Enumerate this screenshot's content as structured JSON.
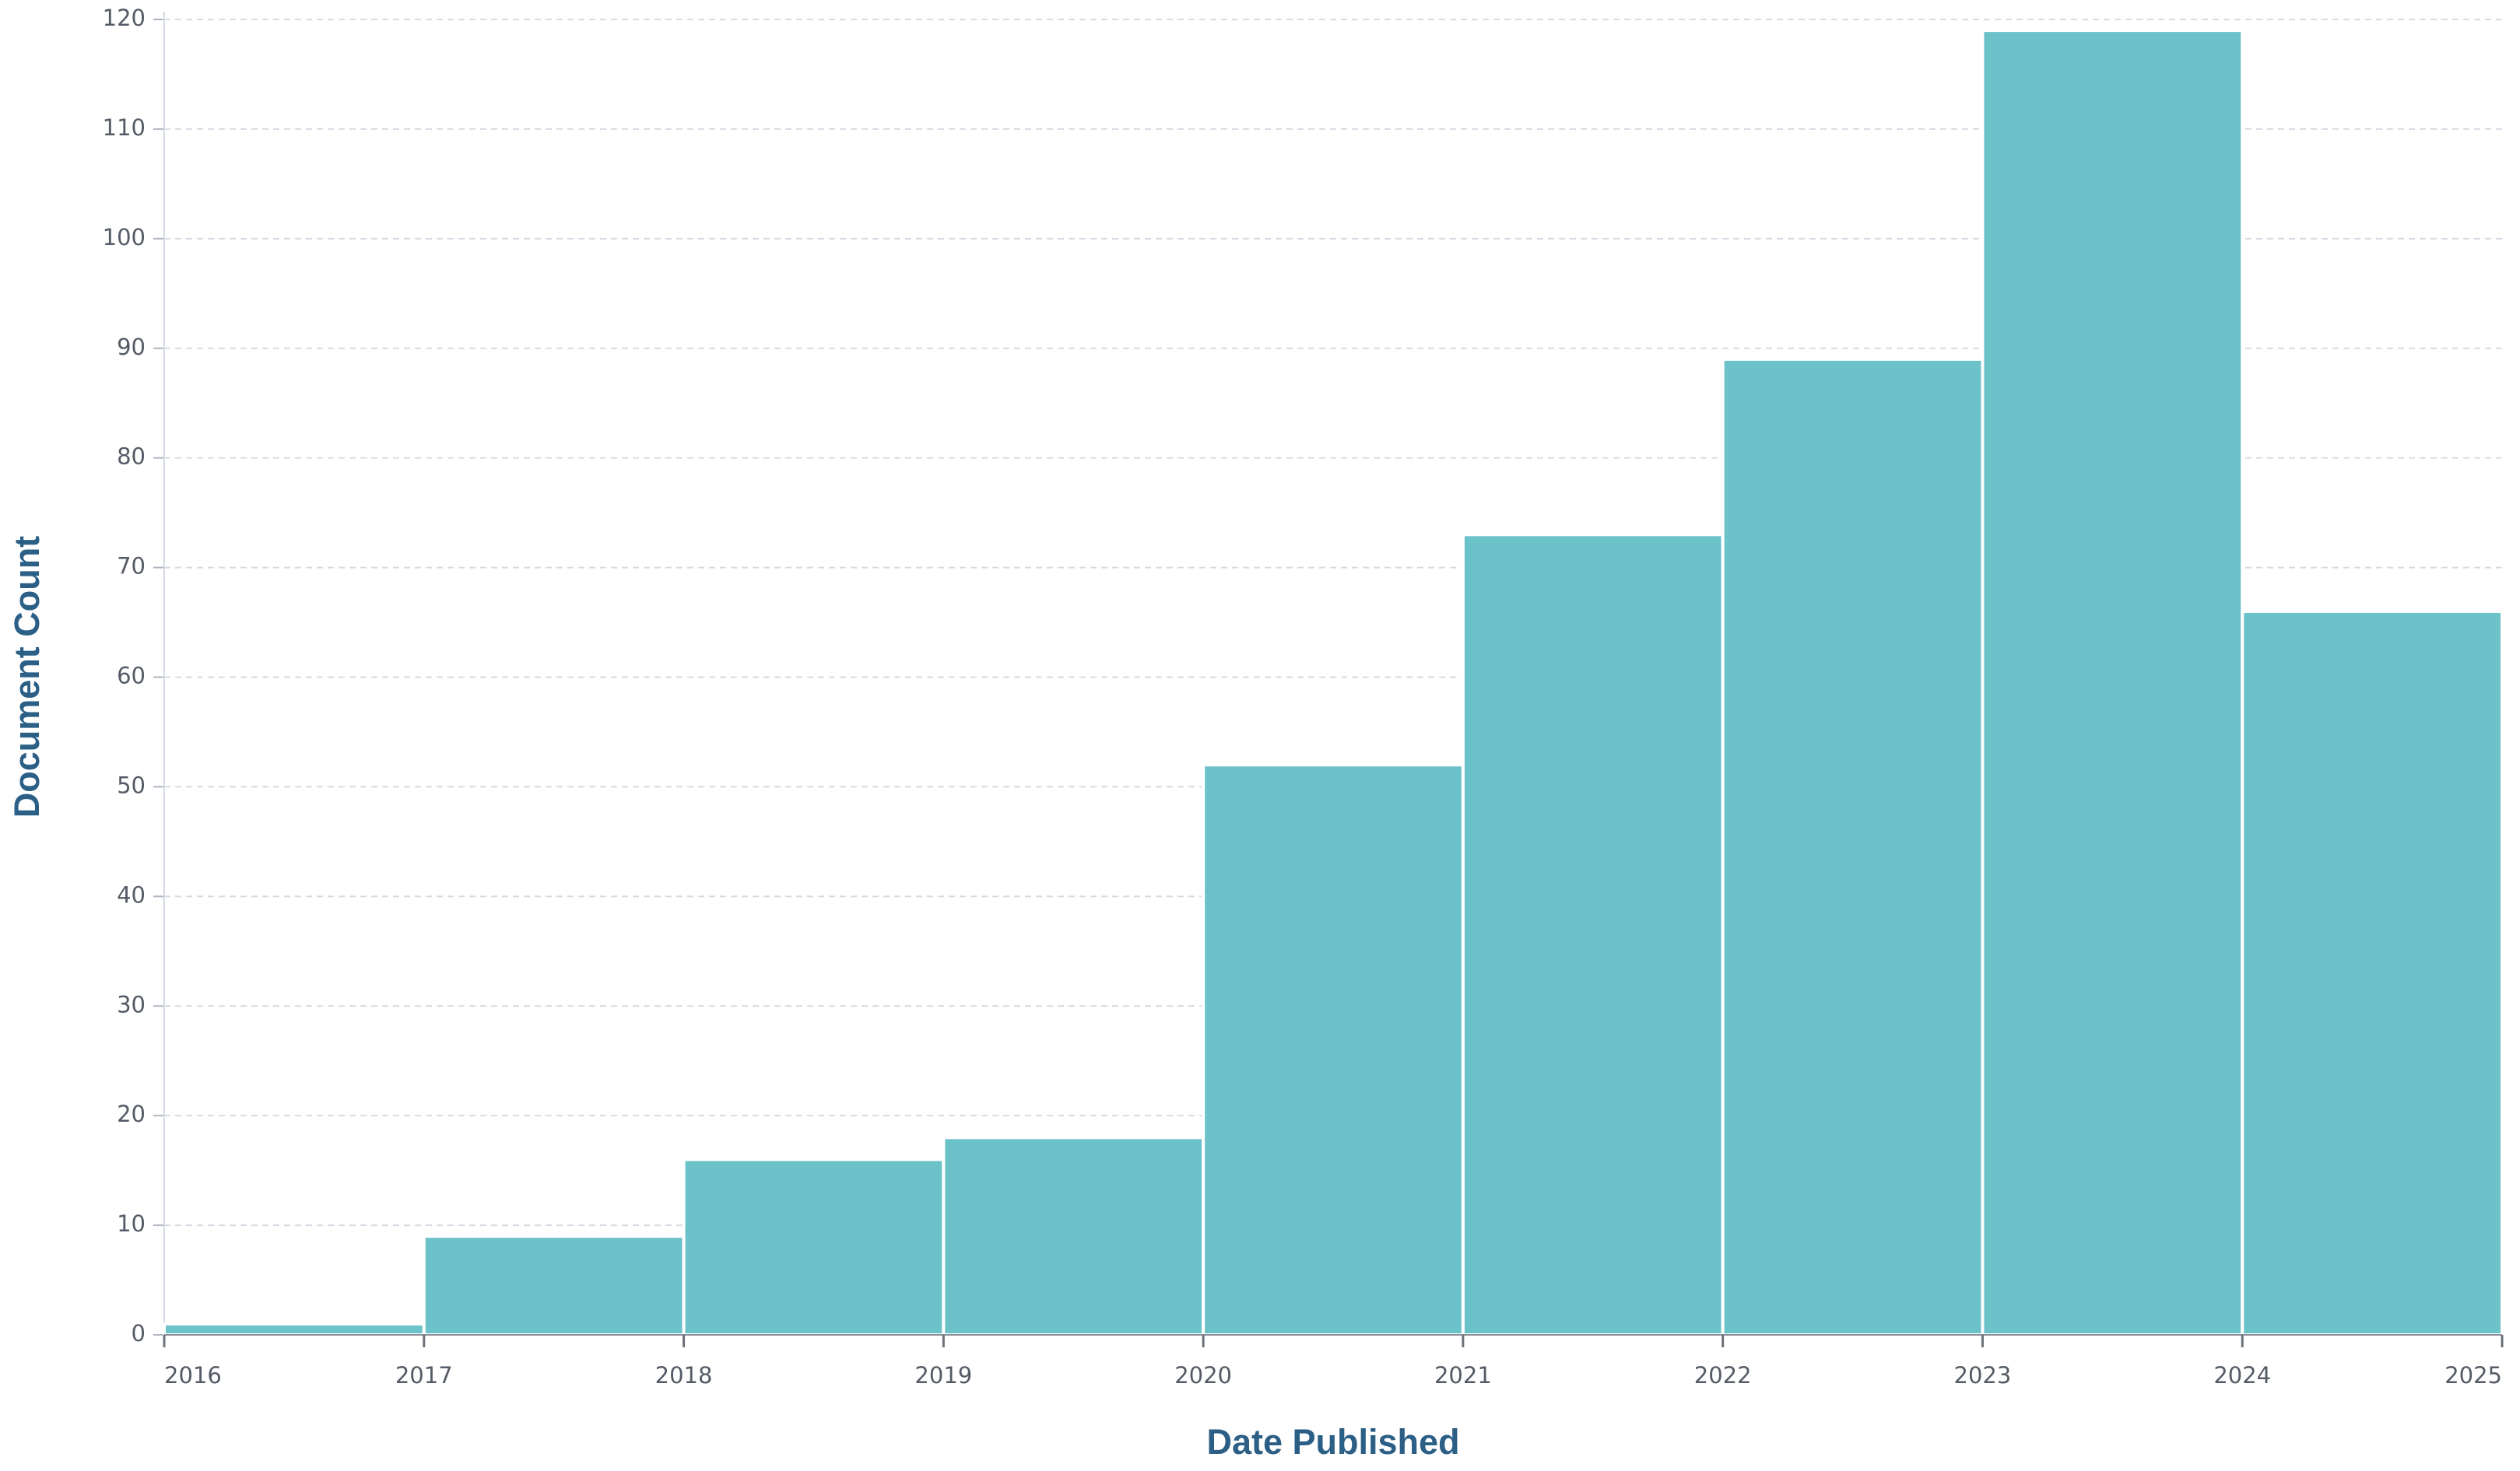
{
  "chart_data": {
    "type": "histogram",
    "x_label": "Date Published",
    "y_label": "Document Count",
    "bins": [
      2016,
      2017,
      2018,
      2019,
      2020,
      2021,
      2022,
      2023,
      2024,
      2025
    ],
    "values": [
      1,
      9,
      16,
      18,
      52,
      73,
      89,
      119,
      66
    ],
    "color": "#6cc2c9",
    "xlim": [
      2016,
      2025
    ],
    "xticks": [
      2016,
      2017,
      2018,
      2019,
      2020,
      2021,
      2022,
      2023,
      2024,
      2025
    ],
    "ylim": [
      0,
      120
    ],
    "yticks": [
      0,
      10,
      20,
      30,
      40,
      50,
      60,
      70,
      80,
      90,
      100,
      110,
      120
    ],
    "grid": true
  }
}
